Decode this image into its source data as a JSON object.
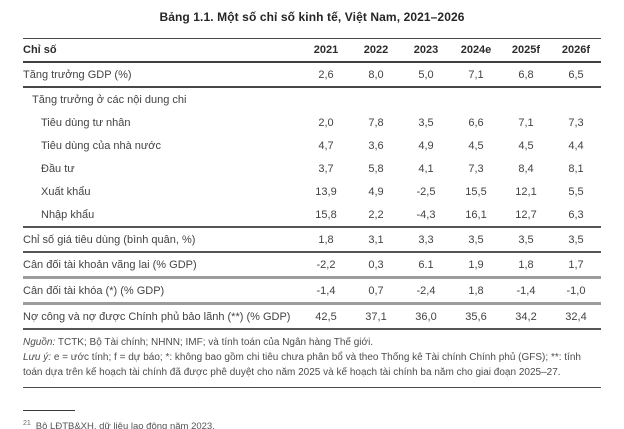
{
  "title": "Bảng 1.1. Một số chỉ số kinh tế, Việt Nam, 2021–2026",
  "colors": {
    "rule_dark": "#474747",
    "rule_gray": "#9c9c9c",
    "text": "#434343"
  },
  "table": {
    "header": {
      "indicator_label": "Chỉ số",
      "years": [
        "2021",
        "2022",
        "2023",
        "2024e",
        "2025f",
        "2026f"
      ]
    },
    "rows": [
      {
        "label": "Tăng trưởng GDP (%)",
        "values": [
          "2,6",
          "8,0",
          "5,0",
          "7,1",
          "6,8",
          "6,5"
        ],
        "indent": 0,
        "separator": "dark2"
      },
      {
        "label": "Tăng trưởng ở các nội dung chi",
        "values": [
          "",
          "",
          "",
          "",
          "",
          ""
        ],
        "indent": 1,
        "separator": "none"
      },
      {
        "label": "Tiêu dùng tư nhân",
        "values": [
          "2,0",
          "7,8",
          "3,5",
          "6,6",
          "7,1",
          "7,3"
        ],
        "indent": 2,
        "separator": "none"
      },
      {
        "label": "Tiêu dùng của nhà nước",
        "values": [
          "4,7",
          "3,6",
          "4,9",
          "4,5",
          "4,5",
          "4,4"
        ],
        "indent": 2,
        "separator": "none"
      },
      {
        "label": "Đầu tư",
        "values": [
          "3,7",
          "5,8",
          "4,1",
          "7,3",
          "8,4",
          "8,1"
        ],
        "indent": 2,
        "separator": "none"
      },
      {
        "label": "Xuất khẩu",
        "values": [
          "13,9",
          "4,9",
          "-2,5",
          "15,5",
          "12,1",
          "5,5"
        ],
        "indent": 2,
        "separator": "none"
      },
      {
        "label": "Nhập khẩu",
        "values": [
          "15,8",
          "2,2",
          "-4,3",
          "16,1",
          "12,7",
          "6,3"
        ],
        "indent": 2,
        "separator": "dark"
      },
      {
        "label": "Chỉ số giá tiêu dùng (bình quân, %)",
        "values": [
          "1,8",
          "3,1",
          "3,3",
          "3,5",
          "3,5",
          "3,5"
        ],
        "indent": 0,
        "separator": "dark"
      },
      {
        "label": "Cân đối tài khoản vãng lai (% GDP)",
        "values": [
          "-2,2",
          "0,3",
          "6.1",
          "1,9",
          "1,8",
          "1,7"
        ],
        "indent": 0,
        "separator": "gray"
      },
      {
        "label": "Cân đối tài khóa (*) (% GDP)",
        "values": [
          "-1,4",
          "0,7",
          "-2,4",
          "1,8",
          "-1,4",
          "-1,0"
        ],
        "indent": 0,
        "separator": "gray"
      },
      {
        "label": "Nợ công và nợ được Chính phủ bảo lãnh (**) (% GDP)",
        "values": [
          "42,5",
          "37,1",
          "36,0",
          "35,6",
          "34,2",
          "32,4"
        ],
        "indent": 0,
        "separator": "dark"
      }
    ]
  },
  "notes": {
    "source_label": "Nguồn:",
    "source_text": "TCTK; Bộ Tài chính; NHNN; IMF; và tính toán của Ngân hàng Thế giới.",
    "note_label": "Lưu ý:",
    "note_text": "e = ước tính; f = dự báo; *: không bao gồm chi tiêu chưa phân bổ và theo Thống kê Tài chính Chính phủ (GFS); **: tính toán dựa trên kế hoạch tài chính đã được phê duyệt cho năm 2025 và kế hoạch tài chính ba năm cho giai đoạn 2025–27."
  },
  "footnote": {
    "marker": "21",
    "text": "Bộ LĐTB&XH, dữ liệu lao động năm 2023."
  }
}
